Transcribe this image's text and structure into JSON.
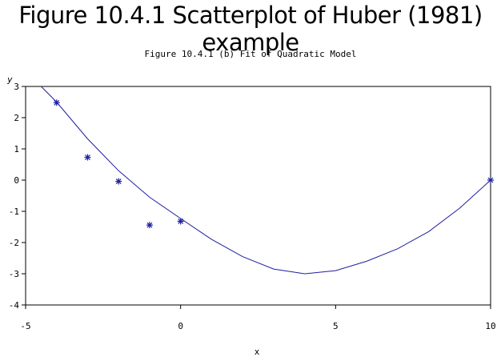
{
  "title": "Figure 10.4.1 Scatterplot of Huber (1981) example",
  "subtitle": "Figure 10.4.1 (b) Fit of Quadratic Model",
  "colors": {
    "series": "#1f1fa0",
    "axis": "#000000"
  },
  "chart_data": {
    "type": "scatter",
    "xlabel": "x",
    "ylabel": "y",
    "xlim": [
      -5,
      10
    ],
    "ylim": [
      -4,
      3
    ],
    "xticks": [
      -5,
      0,
      5,
      10
    ],
    "yticks": [
      -4,
      -3,
      -2,
      -1,
      0,
      1,
      2,
      3
    ],
    "grid": false,
    "legend": "none",
    "marker": "*",
    "points": [
      {
        "x": -4,
        "y": 2.48
      },
      {
        "x": -3,
        "y": 0.73
      },
      {
        "x": -2,
        "y": -0.04
      },
      {
        "x": -1,
        "y": -1.44
      },
      {
        "x": 0,
        "y": -1.32
      },
      {
        "x": 10,
        "y": 0.0
      }
    ],
    "fit": {
      "model": "quadratic",
      "x": [
        -4.5,
        -4,
        -3,
        -2,
        -1,
        0,
        1,
        2,
        3,
        4,
        5,
        6,
        7,
        8,
        9,
        10
      ],
      "y": [
        3.0,
        2.5,
        1.32,
        0.3,
        -0.55,
        -1.23,
        -1.9,
        -2.45,
        -2.85,
        -3.0,
        -2.9,
        -2.6,
        -2.2,
        -1.65,
        -0.9,
        0.0
      ]
    }
  }
}
